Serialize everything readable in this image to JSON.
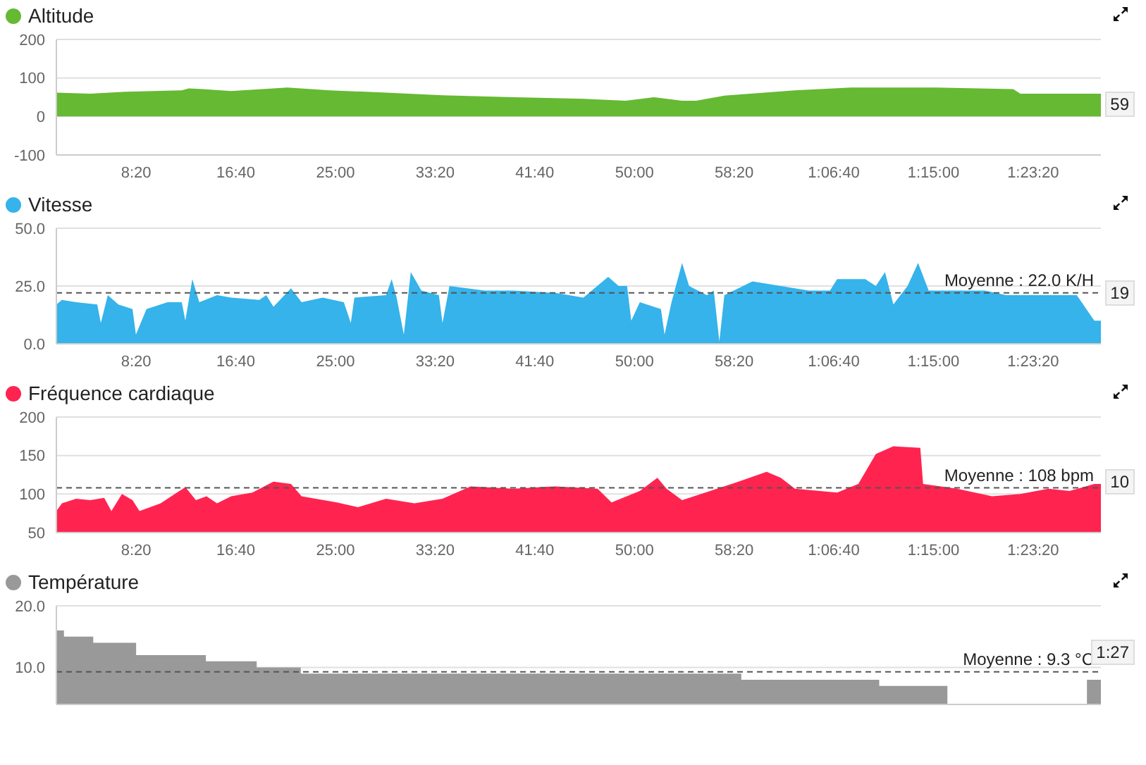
{
  "chart_data": [
    {
      "type": "area",
      "legend": "top left",
      "grid": "y",
      "xlim": [
        100,
        5340
      ],
      "xticks": [
        {
          "value": 500,
          "label": "8:20"
        },
        {
          "value": 1000,
          "label": "16:40"
        },
        {
          "value": 1500,
          "label": "25:00"
        },
        {
          "value": 2000,
          "label": "33:20"
        },
        {
          "value": 2500,
          "label": "41:40"
        },
        {
          "value": 3000,
          "label": "50:00"
        },
        {
          "value": 3500,
          "label": "58:20"
        },
        {
          "value": 4000,
          "label": "1:06:40"
        },
        {
          "value": 4500,
          "label": "1:15:00"
        },
        {
          "value": 5000,
          "label": "1:23:20"
        }
      ],
      "ylim": [
        -100,
        200
      ],
      "yticks": [
        -100,
        0,
        100,
        200
      ],
      "annotations": [
        "59"
      ],
      "x": [
        100,
        270,
        446,
        729,
        764,
        835,
        977,
        1259,
        1471,
        1754,
        2037,
        2391,
        2744,
        2956,
        3098,
        3239,
        3310,
        3451,
        3805,
        4087,
        4512,
        4900,
        4936,
        5340
      ],
      "series": [
        {
          "name": "Altitude",
          "color": "#66b933",
          "values": [
            62,
            59,
            64,
            68,
            73,
            71,
            66,
            75,
            68,
            62,
            55,
            50,
            46,
            41,
            50,
            41,
            41,
            54,
            68,
            75,
            75,
            71,
            59,
            59
          ]
        }
      ]
    },
    {
      "type": "area",
      "legend": "top left",
      "grid": "y",
      "xlim": [
        100,
        5340
      ],
      "xticks": [
        {
          "value": 500,
          "label": "8:20"
        },
        {
          "value": 1000,
          "label": "16:40"
        },
        {
          "value": 1500,
          "label": "25:00"
        },
        {
          "value": 2000,
          "label": "33:20"
        },
        {
          "value": 2500,
          "label": "41:40"
        },
        {
          "value": 3000,
          "label": "50:00"
        },
        {
          "value": 3500,
          "label": "58:20"
        },
        {
          "value": 4000,
          "label": "1:06:40"
        },
        {
          "value": 4500,
          "label": "1:15:00"
        },
        {
          "value": 5000,
          "label": "1:23:20"
        }
      ],
      "ylim": [
        0,
        50
      ],
      "yticks": [
        {
          "value": 0,
          "label": "0.0"
        },
        {
          "value": 25,
          "label": "25.0"
        },
        {
          "value": 50,
          "label": "50.0"
        }
      ],
      "annotations": [
        "19"
      ],
      "ref_lines": [
        {
          "axis": "y",
          "value": 22.0,
          "label": "Moyenne : 22.0 K/H"
        }
      ],
      "x": [
        100,
        128,
        199,
        305,
        323,
        358,
        411,
        482,
        499,
        552,
        658,
        729,
        747,
        782,
        817,
        906,
        977,
        1118,
        1153,
        1189,
        1277,
        1330,
        1436,
        1542,
        1577,
        1595,
        1754,
        1782,
        1807,
        1843,
        1878,
        1931,
        2019,
        2037,
        2072,
        2249,
        2391,
        2603,
        2744,
        2868,
        2921,
        2963,
        2984,
        3027,
        3133,
        3151,
        3186,
        3239,
        3274,
        3363,
        3398,
        3426,
        3451,
        3592,
        3734,
        3875,
        3981,
        4017,
        4158,
        4211,
        4257,
        4299,
        4370,
        4423,
        4476,
        4618,
        4759,
        4865,
        5042,
        5219,
        5307,
        5340
      ],
      "series": [
        {
          "name": "Vitesse",
          "color": "#35b3ea",
          "values": [
            17,
            19,
            18,
            17,
            9,
            21,
            17,
            15,
            4,
            15,
            18,
            18,
            10,
            28,
            18,
            21,
            20,
            19,
            21,
            16,
            24,
            18,
            20,
            18,
            9,
            20,
            21,
            28,
            20,
            4,
            31,
            23,
            21,
            9,
            25,
            23,
            23,
            22,
            20,
            29,
            25,
            25,
            10,
            18,
            15,
            4,
            18,
            35,
            25,
            21,
            23,
            1,
            21,
            27,
            25,
            23,
            23,
            28,
            28,
            25,
            31,
            17,
            25,
            35,
            23,
            23,
            23,
            21,
            21,
            21,
            10,
            10
          ]
        }
      ]
    },
    {
      "type": "area",
      "legend": "top left",
      "grid": "y",
      "xlim": [
        100,
        5340
      ],
      "xticks": [
        {
          "value": 500,
          "label": "8:20"
        },
        {
          "value": 1000,
          "label": "16:40"
        },
        {
          "value": 1500,
          "label": "25:00"
        },
        {
          "value": 2000,
          "label": "33:20"
        },
        {
          "value": 2500,
          "label": "41:40"
        },
        {
          "value": 3000,
          "label": "50:00"
        },
        {
          "value": 3500,
          "label": "58:20"
        },
        {
          "value": 4000,
          "label": "1:06:40"
        },
        {
          "value": 4500,
          "label": "1:15:00"
        },
        {
          "value": 5000,
          "label": "1:23:20"
        }
      ],
      "ylim": [
        50,
        200
      ],
      "yticks": [
        50,
        100,
        150,
        200
      ],
      "annotations": [
        "10"
      ],
      "ref_lines": [
        {
          "axis": "y",
          "value": 108,
          "label": "Moyenne : 108 bpm"
        }
      ],
      "x": [
        100,
        128,
        199,
        270,
        340,
        376,
        429,
        482,
        517,
        623,
        747,
        800,
        853,
        906,
        977,
        1083,
        1189,
        1277,
        1330,
        1507,
        1613,
        1754,
        1896,
        2037,
        2178,
        2391,
        2603,
        2815,
        2885,
        3027,
        3115,
        3161,
        3239,
        3380,
        3522,
        3663,
        3734,
        3805,
        4017,
        4123,
        4211,
        4299,
        4434,
        4448,
        4618,
        4794,
        4936,
        5077,
        5183,
        5307,
        5340
      ],
      "series": [
        {
          "name": "Fréquence cardiaque",
          "color": "#ff2450",
          "values": [
            78,
            88,
            94,
            92,
            95,
            78,
            100,
            92,
            78,
            88,
            109,
            92,
            97,
            88,
            97,
            102,
            116,
            113,
            97,
            89,
            83,
            94,
            88,
            94,
            110,
            107,
            110,
            107,
            89,
            104,
            121,
            107,
            92,
            104,
            116,
            129,
            121,
            107,
            102,
            113,
            152,
            162,
            160,
            113,
            107,
            97,
            100,
            107,
            104,
            113,
            113
          ]
        }
      ]
    },
    {
      "type": "area",
      "legend": "top left",
      "grid": "y",
      "xlim": [
        100,
        5340
      ],
      "ylim": [
        4,
        20
      ],
      "yticks": [
        {
          "value": 10,
          "label": "10.0"
        },
        {
          "value": 20,
          "label": "20.0"
        }
      ],
      "annotations": [
        "1:27"
      ],
      "ref_lines": [
        {
          "axis": "y",
          "value": 9.3,
          "label": "Moyenne : 9.3 °C"
        }
      ],
      "x": [
        100,
        138,
        138,
        285,
        285,
        500,
        500,
        850,
        850,
        1105,
        1105,
        1326,
        1326,
        3536,
        3536,
        4228,
        4228,
        4570,
        4571,
        5270,
        5340
      ],
      "series": [
        {
          "name": "Température",
          "color": "#999999",
          "values": [
            16,
            16,
            15,
            15,
            14,
            14,
            12,
            12,
            11,
            11,
            10,
            10,
            9,
            9,
            8,
            8,
            7,
            7,
            null,
            8,
            8
          ]
        }
      ]
    }
  ]
}
